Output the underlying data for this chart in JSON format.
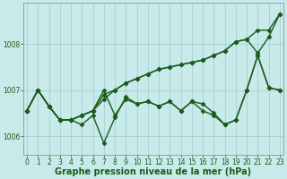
{
  "xlabel": "Graphe pression niveau de la mer (hPa)",
  "background_color": "#c8eaea",
  "grid_color": "#a0cccc",
  "line_color": "#1a5c1a",
  "ylim": [
    1005.6,
    1008.9
  ],
  "xlim": [
    -0.3,
    23.3
  ],
  "yticks": [
    1006,
    1007,
    1008
  ],
  "xticks": [
    0,
    1,
    2,
    3,
    4,
    5,
    6,
    7,
    8,
    9,
    10,
    11,
    12,
    13,
    14,
    15,
    16,
    17,
    18,
    19,
    20,
    21,
    22,
    23
  ],
  "series": [
    [
      1006.55,
      1007.0,
      1006.65,
      1006.35,
      1006.35,
      1006.45,
      1006.55,
      1006.8,
      1007.0,
      1007.15,
      1007.25,
      1007.35,
      1007.45,
      1007.5,
      1007.55,
      1007.6,
      1007.65,
      1007.75,
      1007.85,
      1008.05,
      1008.1,
      1007.8,
      1008.15,
      1008.65
    ],
    [
      1006.55,
      1007.0,
      1006.65,
      1006.35,
      1006.35,
      1006.45,
      1006.55,
      1006.9,
      1007.0,
      1007.15,
      1007.25,
      1007.35,
      1007.45,
      1007.5,
      1007.55,
      1007.6,
      1007.65,
      1007.75,
      1007.85,
      1008.05,
      1008.1,
      1008.3,
      1008.3,
      1008.65
    ],
    [
      1006.55,
      1007.0,
      1006.65,
      1006.35,
      1006.35,
      1006.45,
      1006.55,
      1007.0,
      1006.45,
      1006.8,
      1006.7,
      1006.75,
      1006.65,
      1006.75,
      1006.55,
      1006.75,
      1006.7,
      1006.5,
      1006.25,
      1006.35,
      1007.0,
      1007.75,
      1007.05,
      1007.0
    ],
    [
      1006.55,
      1007.0,
      1006.65,
      1006.35,
      1006.35,
      1006.25,
      1006.45,
      1005.85,
      1006.4,
      1006.85,
      1006.7,
      1006.75,
      1006.65,
      1006.75,
      1006.55,
      1006.75,
      1006.55,
      1006.45,
      1006.25,
      1006.35,
      1007.0,
      1007.75,
      1007.05,
      1007.0
    ]
  ],
  "marker": "D",
  "marker_size": 2.5,
  "line_width": 1.0,
  "tick_fontsize": 5.5,
  "label_fontsize": 7.0,
  "figsize": [
    3.2,
    2.0
  ],
  "dpi": 100
}
